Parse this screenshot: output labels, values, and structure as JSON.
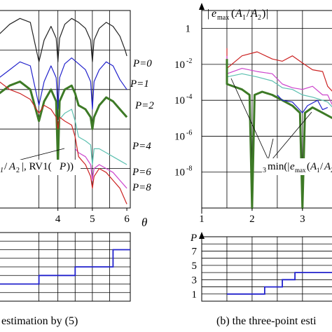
{
  "colors": {
    "P0": "#222222",
    "P1": "#2222cc",
    "P2": "#3d7a26",
    "P4": "#5cc0b0",
    "P6": "#cc44cc",
    "P8": "#cc2222",
    "step": "#2222cc"
  },
  "chart_data": [
    {
      "type": "line",
      "panel": "left-top",
      "xlabel": "θ",
      "ylabel": "",
      "xlim": [
        2.3,
        6.1
      ],
      "ylim": [
        0,
        1
      ],
      "x_ticks": [
        "4",
        "5",
        "6"
      ],
      "x_tick_values": [
        4,
        5,
        6
      ],
      "series": [
        {
          "name": "P=0",
          "color_key": "P0",
          "x": [
            2.3,
            2.6,
            2.9,
            3.2,
            3.45,
            3.6,
            3.8,
            3.95,
            4.0,
            4.05,
            4.2,
            4.4,
            4.6,
            4.8,
            4.95,
            5.0,
            5.05,
            5.2,
            5.4,
            5.6,
            5.8,
            5.95,
            6.0
          ],
          "y": [
            0.88,
            0.93,
            0.96,
            0.94,
            0.74,
            0.85,
            0.92,
            0.86,
            0.74,
            0.86,
            0.93,
            0.96,
            0.94,
            0.91,
            0.85,
            0.74,
            0.85,
            0.91,
            0.94,
            0.92,
            0.87,
            0.8,
            0.77
          ]
        },
        {
          "name": "P=1",
          "color_key": "P1",
          "x": [
            2.3,
            2.6,
            2.9,
            3.2,
            3.45,
            3.6,
            3.8,
            3.95,
            4.0,
            4.05,
            4.2,
            4.4,
            4.6,
            4.8,
            4.95,
            5.0,
            5.05,
            5.2,
            5.4,
            5.6,
            5.8,
            6.0
          ],
          "y": [
            0.66,
            0.7,
            0.74,
            0.72,
            0.52,
            0.64,
            0.72,
            0.66,
            0.5,
            0.66,
            0.73,
            0.76,
            0.73,
            0.7,
            0.64,
            0.5,
            0.64,
            0.7,
            0.74,
            0.72,
            0.65,
            0.6
          ]
        },
        {
          "name": "P=2",
          "color_key": "P2",
          "x": [
            2.3,
            2.6,
            2.9,
            3.2,
            3.45,
            3.6,
            3.8,
            3.95,
            4.0,
            4.05,
            4.2,
            4.4,
            4.5,
            4.6,
            4.8,
            4.95,
            5.0,
            5.05,
            5.2,
            5.4,
            5.6,
            5.8,
            6.0
          ],
          "y": [
            0.58,
            0.62,
            0.64,
            0.6,
            0.44,
            0.54,
            0.6,
            0.54,
            0.22,
            0.54,
            0.6,
            0.62,
            0.58,
            0.52,
            0.5,
            0.46,
            0.4,
            0.46,
            0.52,
            0.56,
            0.54,
            0.5,
            0.46
          ]
        },
        {
          "name": "P=4",
          "color_key": "P4",
          "x": [
            4.0,
            4.2,
            4.4,
            4.5,
            4.6,
            4.8,
            4.95,
            5.0,
            5.05,
            5.2,
            5.4,
            5.6,
            5.8,
            6.0
          ],
          "y": [
            0.44,
            0.48,
            0.5,
            0.44,
            0.36,
            0.34,
            0.32,
            0.22,
            0.3,
            0.3,
            0.28,
            0.26,
            0.24,
            0.22
          ]
        },
        {
          "name": "P=6",
          "color_key": "P6",
          "x": [
            4.5,
            4.6,
            4.8,
            4.95,
            5.0,
            5.05,
            5.2,
            5.4,
            5.6,
            5.8,
            6.0
          ],
          "y": [
            0.3,
            0.28,
            0.26,
            0.22,
            0.14,
            0.2,
            0.22,
            0.2,
            0.18,
            0.14,
            0.1
          ]
        },
        {
          "name": "P=8",
          "color_key": "P8",
          "x": [
            2.3,
            2.6,
            2.9,
            3.2,
            3.45,
            3.6,
            3.8,
            3.95,
            4.0,
            4.05,
            4.2,
            4.4,
            4.5,
            4.6,
            4.8,
            4.95,
            5.0,
            5.05,
            5.2,
            5.4,
            5.6,
            5.8,
            5.95,
            6.0
          ],
          "y": [
            0.64,
            0.6,
            0.58,
            0.55,
            0.48,
            0.52,
            0.5,
            0.46,
            0.4,
            0.46,
            0.44,
            0.42,
            0.36,
            0.26,
            0.22,
            0.16,
            0.1,
            0.16,
            0.2,
            0.18,
            0.14,
            0.1,
            0.04,
            0.02
          ]
        }
      ],
      "annotations": [
        "P=0",
        "P=1",
        "P=2",
        "P=4",
        "P=6",
        "P=8"
      ],
      "label_fragment_a": "A",
      "label_fragment_b": "|, RV1(",
      "label_fragment_c": "P",
      "label_fragment_d": "))",
      "label_sub": "1",
      "label_sub2": "2"
    },
    {
      "type": "line",
      "panel": "left-bottom",
      "xlim": [
        2.3,
        6.1
      ],
      "ylim": [
        0,
        4
      ],
      "series": [
        {
          "name": "",
          "color_key": "step",
          "x": [
            2.3,
            3.45,
            3.45,
            4.5,
            4.5,
            5.5,
            5.5,
            5.6,
            5.6,
            6.1
          ],
          "y": [
            1.0,
            1.0,
            1.5,
            1.5,
            2.0,
            2.0,
            2.0,
            2.0,
            3.0,
            3.0
          ]
        }
      ]
    },
    {
      "type": "line",
      "panel": "right-top",
      "ylabel": "|e_max(A_1/A_2)|",
      "yscale": "log",
      "xlim": [
        1,
        3.6
      ],
      "ylim": [
        1e-10,
        10
      ],
      "x_ticks": [
        "1",
        "2",
        "3"
      ],
      "x_tick_values": [
        1,
        2,
        3
      ],
      "y_ticks": [
        "1",
        "10",
        "10",
        "10",
        "10"
      ],
      "y_tick_exponents": [
        "",
        "-2",
        "-4",
        "-6",
        "-8"
      ],
      "y_tick_values": [
        1,
        0.01,
        0.0001,
        1e-06,
        1e-08
      ],
      "series": [
        {
          "name": "",
          "color_key": "P8",
          "x": [
            1.5,
            1.5,
            1.8,
            2.1,
            2.4,
            2.6,
            2.8,
            3.0,
            3.2,
            3.4,
            3.5,
            3.6
          ],
          "y": [
            0.08,
            0.006,
            0.03,
            0.05,
            0.02,
            0.015,
            0.03,
            0.012,
            0.005,
            0.004,
            0.0006,
            0.0003
          ]
        },
        {
          "name": "",
          "color_key": "P6",
          "x": [
            1.5,
            1.5,
            1.8,
            2.1,
            2.4,
            2.6,
            2.8,
            3.0,
            3.2,
            3.4,
            3.5,
            3.6
          ],
          "y": [
            0.03,
            0.003,
            0.006,
            0.004,
            0.003,
            0.0008,
            0.0005,
            0.0004,
            0.0006,
            0.0002,
            0.0002,
            5e-05
          ]
        },
        {
          "name": "",
          "color_key": "P4",
          "x": [
            1.5,
            1.5,
            1.8,
            2.1,
            2.4,
            2.6,
            2.8,
            3.0,
            3.2,
            3.4,
            3.5,
            3.6
          ],
          "y": [
            0.01,
            0.002,
            0.003,
            0.002,
            0.0012,
            0.0005,
            0.0004,
            0.0002,
            0.00015,
            0.0001,
            8e-05,
            4e-05
          ]
        },
        {
          "name": "",
          "color_key": "P2",
          "x": [
            1.5,
            1.5,
            1.8,
            1.95,
            2.0,
            2.05,
            2.2,
            2.4,
            2.6,
            2.8,
            2.95,
            3.0,
            3.05,
            3.2,
            3.4,
            3.6
          ],
          "y": [
            0.02,
            0.0008,
            0.0004,
            0.0002,
            1e-10,
            0.0002,
            0.0003,
            0.0002,
            0.0001,
            5e-05,
            2e-05,
            1e-10,
            2e-05,
            4e-05,
            2e-05,
            1e-05
          ]
        },
        {
          "name": "",
          "color_key": "P1",
          "x": [
            2.5,
            2.6,
            2.8,
            2.9,
            3.0,
            3.1,
            3.3,
            3.4,
            3.5
          ],
          "y": [
            0.0002,
            0.0001,
            8e-05,
            4e-05,
            2e-05,
            5e-05,
            0.0001,
            3e-05,
            4e-05
          ]
        }
      ],
      "label_prefix": "min(|",
      "label_sub": "3",
      "label_e": "e",
      "label_max": "max",
      "label_a": "A",
      "label_sub1": "1",
      "label_sub2": "2"
    },
    {
      "type": "line",
      "panel": "right-bottom",
      "ylabel": "P",
      "xlim": [
        1,
        3.6
      ],
      "ylim": [
        0,
        9
      ],
      "y_ticks": [
        "1",
        "3",
        "5",
        "7"
      ],
      "y_tick_values": [
        1,
        3,
        5,
        7
      ],
      "series": [
        {
          "name": "",
          "color_key": "step",
          "x": [
            1.5,
            2.25,
            2.25,
            2.6,
            2.6,
            2.85,
            2.85,
            3.6
          ],
          "y": [
            1,
            1,
            2,
            2,
            3,
            3,
            4,
            4
          ]
        }
      ]
    }
  ],
  "captions": {
    "left": "estimation by (5)",
    "right": "(b) the three-point esti"
  }
}
